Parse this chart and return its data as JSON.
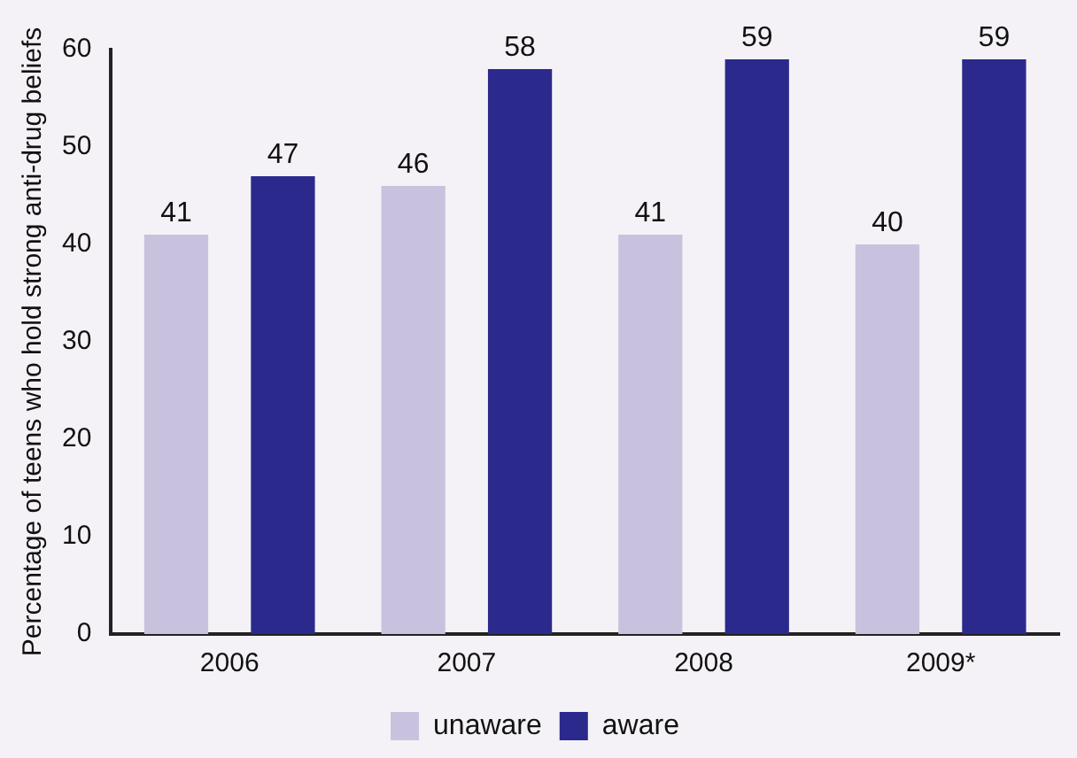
{
  "chart_data": {
    "type": "bar",
    "ylabel": "Percentage of teens who hold strong anti-drug beliefs",
    "categories": [
      "2006",
      "2007",
      "2008",
      "2009*"
    ],
    "series": [
      {
        "name": "unaware",
        "color": "#c9c2de",
        "values": [
          41,
          46,
          41,
          40
        ]
      },
      {
        "name": "aware",
        "color": "#2b2a8c",
        "values": [
          47,
          58,
          59,
          59
        ]
      }
    ],
    "ylim": [
      0,
      60
    ],
    "yticks": [
      0,
      10,
      20,
      30,
      40,
      50,
      60
    ],
    "grid": false,
    "legend": "bottom",
    "data_labels": true
  }
}
